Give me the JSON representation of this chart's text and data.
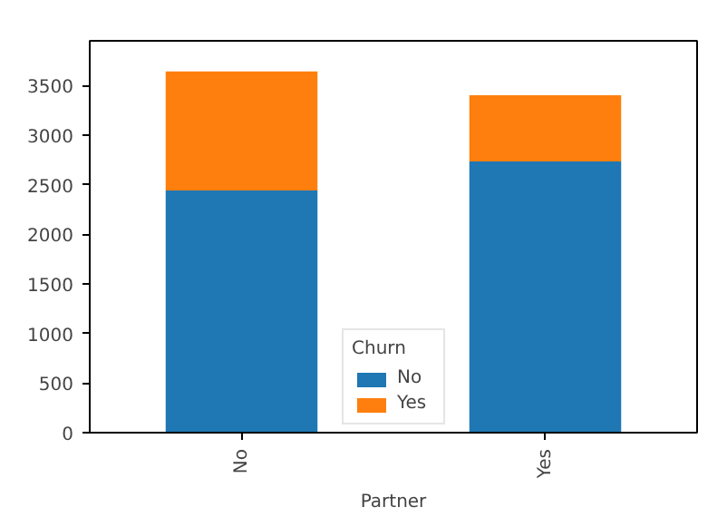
{
  "chart_data": {
    "type": "bar",
    "stacked": true,
    "xlabel": "Partner",
    "legend_title": "Churn",
    "categories": [
      "No",
      "Yes"
    ],
    "series": [
      {
        "name": "No",
        "color": "#1f77b4",
        "values": [
          2441,
          2733
        ]
      },
      {
        "name": "Yes",
        "color": "#ff7f0e",
        "values": [
          1200,
          669
        ]
      }
    ],
    "ylim": [
      0,
      3950
    ],
    "yticks": [
      0,
      500,
      1000,
      1500,
      2000,
      2500,
      3000,
      3500
    ],
    "grid": false,
    "legend": "bottom"
  }
}
